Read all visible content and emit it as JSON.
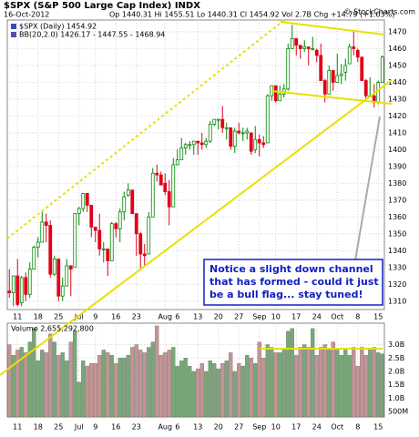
{
  "chart_data": {
    "type": "candlestick",
    "title": "$SPX (S&P 500 Large Cap Index) INDX",
    "source": "© StockCharts.com",
    "date": "16-Oct-2012",
    "quote": "Op 1440.31 Hi 1455.51 Lo 1440.31 Cl 1454.92 Vol 2.7B Chg +14.79 (+1.03%)",
    "legend": [
      "$SPX (Daily) 1454.92",
      "BB(20,2.0) 1426.17 - 1447.55 - 1468.94"
    ],
    "volume_legend": "Volume 2,655,292,800",
    "annotation": [
      "Notice a slight down channel",
      "that has formed - could it just",
      "be a bull flag... stay tuned!"
    ],
    "up_color": "#008800",
    "down_color": "#e0001a",
    "volume_up_color": "#78a878",
    "volume_down_color": "#c49494",
    "categories": [
      null,
      null,
      "11",
      null,
      null,
      null,
      null,
      "18",
      null,
      null,
      null,
      null,
      "25",
      null,
      null,
      null,
      null,
      "Jul",
      null,
      null,
      null,
      "9",
      null,
      null,
      null,
      null,
      "16",
      null,
      null,
      null,
      null,
      "23",
      null,
      null,
      null,
      null,
      null,
      null,
      "Aug",
      null,
      null,
      "6",
      null,
      null,
      null,
      null,
      "13",
      null,
      null,
      null,
      null,
      "20",
      null,
      null,
      null,
      null,
      "27",
      null,
      null,
      null,
      null,
      "Sep",
      null,
      null,
      null,
      "10",
      null,
      null,
      null,
      null,
      "17",
      null,
      null,
      null,
      null,
      "24",
      null,
      null,
      null,
      null,
      "Oct",
      null,
      null,
      null,
      null,
      "8",
      null,
      null,
      null,
      null,
      "15",
      null
    ],
    "ohlc": [
      [
        1316,
        1329,
        1312,
        1315
      ],
      [
        1315,
        1325,
        1307,
        1325
      ],
      [
        1325,
        1335,
        1307,
        1308
      ],
      [
        1309,
        1325,
        1307,
        1324
      ],
      [
        1324,
        1327,
        1310,
        1314
      ],
      [
        1314,
        1333,
        1312,
        1329
      ],
      [
        1329,
        1343,
        1329,
        1342
      ],
      [
        1342,
        1348,
        1336,
        1345
      ],
      [
        1345,
        1363,
        1345,
        1357
      ],
      [
        1357,
        1362,
        1345,
        1355
      ],
      [
        1355,
        1358,
        1324,
        1326
      ],
      [
        1326,
        1337,
        1325,
        1335
      ],
      [
        1335,
        1335,
        1310,
        1313
      ],
      [
        1313,
        1324,
        1310,
        1319
      ],
      [
        1319,
        1335,
        1319,
        1331
      ],
      [
        1331,
        1331,
        1313,
        1329
      ],
      [
        1330,
        1362,
        1330,
        1362
      ],
      [
        1362,
        1366,
        1355,
        1365
      ],
      [
        1365,
        1374,
        1363,
        1374
      ],
      [
        1374,
        1374,
        1363,
        1367
      ],
      [
        1367,
        1367,
        1348,
        1354
      ],
      [
        1354,
        1354,
        1345,
        1352
      ],
      [
        1352,
        1362,
        1337,
        1341
      ],
      [
        1341,
        1345,
        1333,
        1341
      ],
      [
        1341,
        1341,
        1325,
        1334
      ],
      [
        1334,
        1357,
        1334,
        1356
      ],
      [
        1356,
        1357,
        1348,
        1353
      ],
      [
        1353,
        1365,
        1345,
        1363
      ],
      [
        1363,
        1375,
        1358,
        1372
      ],
      [
        1373,
        1380,
        1372,
        1376
      ],
      [
        1376,
        1376,
        1362,
        1362
      ],
      [
        1362,
        1362,
        1337,
        1350
      ],
      [
        1350,
        1351,
        1329,
        1338
      ],
      [
        1338,
        1344,
        1331,
        1337
      ],
      [
        1338,
        1363,
        1338,
        1360
      ],
      [
        1360,
        1389,
        1360,
        1386
      ],
      [
        1386,
        1391,
        1381,
        1385
      ],
      [
        1385,
        1387,
        1379,
        1379
      ],
      [
        1380,
        1386,
        1373,
        1375
      ],
      [
        1375,
        1382,
        1355,
        1366
      ],
      [
        1366,
        1395,
        1366,
        1391
      ],
      [
        1391,
        1400,
        1391,
        1394
      ],
      [
        1394,
        1407,
        1394,
        1401
      ],
      [
        1401,
        1404,
        1397,
        1403
      ],
      [
        1403,
        1405,
        1400,
        1403
      ],
      [
        1403,
        1405,
        1397,
        1405
      ],
      [
        1405,
        1405,
        1397,
        1404
      ],
      [
        1404,
        1410,
        1400,
        1403
      ],
      [
        1403,
        1407,
        1401,
        1405
      ],
      [
        1405,
        1417,
        1404,
        1415
      ],
      [
        1415,
        1418,
        1414,
        1418
      ],
      [
        1418,
        1418,
        1412,
        1418
      ],
      [
        1418,
        1426,
        1410,
        1413
      ],
      [
        1413,
        1416,
        1406,
        1413
      ],
      [
        1413,
        1413,
        1400,
        1402
      ],
      [
        1402,
        1413,
        1398,
        1411
      ],
      [
        1411,
        1416,
        1409,
        1410
      ],
      [
        1410,
        1413,
        1405,
        1410
      ],
      [
        1410,
        1413,
        1406,
        1411
      ],
      [
        1410,
        1410,
        1397,
        1399
      ],
      [
        1400,
        1414,
        1398,
        1406
      ],
      [
        1406,
        1409,
        1396,
        1404
      ],
      [
        1404,
        1408,
        1401,
        1403
      ],
      [
        1404,
        1433,
        1404,
        1432
      ],
      [
        1432,
        1438,
        1429,
        1438
      ],
      [
        1438,
        1438,
        1428,
        1429
      ],
      [
        1429,
        1438,
        1429,
        1433
      ],
      [
        1433,
        1439,
        1431,
        1436
      ],
      [
        1436,
        1463,
        1435,
        1460
      ],
      [
        1460,
        1474,
        1460,
        1466
      ],
      [
        1466,
        1466,
        1456,
        1462
      ],
      [
        1462,
        1462,
        1454,
        1460
      ],
      [
        1460,
        1465,
        1458,
        1461
      ],
      [
        1461,
        1461,
        1450,
        1460
      ],
      [
        1460,
        1467,
        1459,
        1460
      ],
      [
        1459,
        1460,
        1452,
        1456
      ],
      [
        1456,
        1463,
        1441,
        1441
      ],
      [
        1441,
        1442,
        1428,
        1433
      ],
      [
        1433,
        1450,
        1433,
        1447
      ],
      [
        1447,
        1447,
        1435,
        1440
      ],
      [
        1440,
        1457,
        1440,
        1444
      ],
      [
        1444,
        1451,
        1439,
        1445
      ],
      [
        1446,
        1454,
        1441,
        1450
      ],
      [
        1451,
        1463,
        1451,
        1461
      ],
      [
        1461,
        1470,
        1456,
        1460
      ],
      [
        1459,
        1460,
        1452,
        1455
      ],
      [
        1455,
        1455,
        1441,
        1441
      ],
      [
        1441,
        1442,
        1430,
        1432
      ],
      [
        1432,
        1443,
        1432,
        1432
      ],
      [
        1432,
        1439,
        1425,
        1428
      ],
      [
        1428,
        1441,
        1427,
        1440
      ],
      [
        1440,
        1456,
        1440,
        1455
      ]
    ],
    "volume": [
      3.0,
      2.6,
      2.8,
      2.9,
      2.7,
      3.1,
      3.6,
      2.4,
      2.8,
      2.7,
      3.4,
      3.1,
      2.6,
      2.7,
      2.4,
      3.1,
      3.5,
      1.6,
      2.4,
      2.2,
      2.3,
      2.3,
      2.6,
      2.8,
      2.7,
      2.6,
      2.3,
      2.5,
      2.5,
      2.6,
      2.9,
      3.0,
      2.8,
      2.7,
      2.9,
      3.1,
      3.7,
      2.6,
      2.7,
      2.8,
      2.9,
      2.2,
      2.4,
      2.5,
      2.2,
      2.0,
      2.1,
      2.3,
      2.0,
      2.4,
      2.3,
      2.1,
      2.3,
      2.4,
      2.7,
      2.0,
      2.3,
      2.2,
      2.6,
      2.5,
      2.3,
      3.1,
      2.5,
      3.0,
      2.9,
      2.7,
      2.7,
      2.8,
      3.5,
      3.6,
      2.6,
      2.9,
      3.0,
      2.9,
      3.6,
      2.6,
      2.9,
      3.0,
      2.8,
      3.1,
      2.8,
      2.6,
      2.8,
      2.6,
      2.9,
      2.2,
      2.9,
      2.6,
      2.8,
      2.9,
      2.7,
      2.655
    ],
    "ylim": [
      1305,
      1477
    ],
    "yticks": [
      1310,
      1320,
      1330,
      1340,
      1350,
      1360,
      1370,
      1380,
      1390,
      1400,
      1410,
      1420,
      1430,
      1440,
      1450,
      1460,
      1470
    ],
    "y2lim": [
      0.3,
      3.8
    ],
    "y2ticks": [
      {
        "value": 3.0,
        "label": "3.0B"
      },
      {
        "value": 2.5,
        "label": "2.5B"
      },
      {
        "value": 2.0,
        "label": "2.0B"
      },
      {
        "value": 1.5,
        "label": "1.5B"
      },
      {
        "value": 1.0,
        "label": "1.0B"
      },
      {
        "value": 0.5,
        "label": "500M"
      }
    ],
    "grid": true
  }
}
